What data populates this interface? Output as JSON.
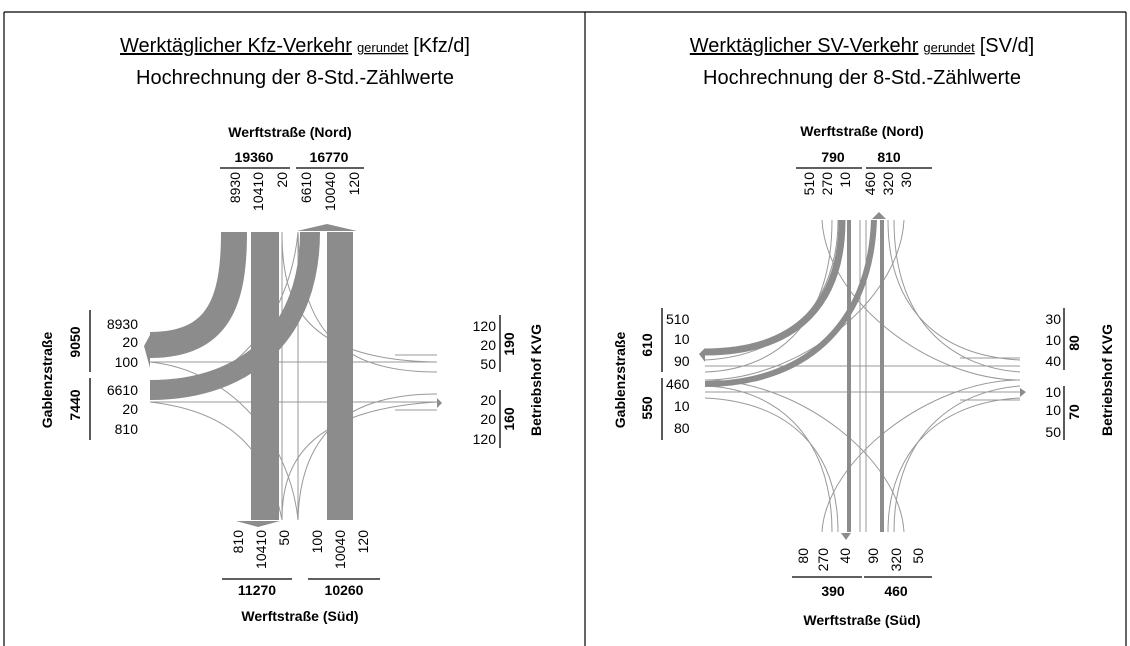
{
  "colors": {
    "flow": "#8c8c8c",
    "thin": "#999999",
    "border": "#000000"
  },
  "panels": [
    {
      "title_main": "Werktäglicher Kfz-Verkehr",
      "title_small": "gerundet",
      "title_unit": "[Kfz/d]",
      "subtitle": "Hochrechnung der 8-Std.-Zählwerte",
      "north": {
        "road": "Werftstraße (Nord)",
        "total_in": "19360",
        "total_out": "16770",
        "in_values": [
          "8930",
          "10410",
          "20"
        ],
        "out_values": [
          "6610",
          "10040",
          "120"
        ]
      },
      "south": {
        "road": "Werftstraße (Süd)",
        "total_out": "11270",
        "total_in": "10260",
        "out_values": [
          "810",
          "10410",
          "50"
        ],
        "in_values": [
          "100",
          "10040",
          "120"
        ]
      },
      "west": {
        "road": "Gablenzstraße",
        "total_out": "9050",
        "total_in": "7440",
        "out_values": [
          "8930",
          "20",
          "100"
        ],
        "in_values": [
          "6610",
          "20",
          "810"
        ]
      },
      "east": {
        "road": "Betriebshof KVG",
        "total_out": "190",
        "total_in": "160",
        "out_values": [
          "120",
          "20",
          "50"
        ],
        "in_values": [
          "20",
          "20",
          "120"
        ]
      }
    },
    {
      "title_main": "Werktäglicher SV-Verkehr",
      "title_small": "gerundet",
      "title_unit": "[SV/d]",
      "subtitle": "Hochrechnung der 8-Std.-Zählwerte",
      "north": {
        "road": "Werftstraße (Nord)",
        "total_in": "790",
        "total_out": "810",
        "in_values": [
          "510",
          "270",
          "10"
        ],
        "out_values": [
          "460",
          "320",
          "30"
        ]
      },
      "south": {
        "road": "Werftstraße (Süd)",
        "total_out": "390",
        "total_in": "460",
        "out_values": [
          "80",
          "270",
          "40"
        ],
        "in_values": [
          "90",
          "320",
          "50"
        ]
      },
      "west": {
        "road": "Gablenzstraße",
        "total_out": "610",
        "total_in": "550",
        "out_values": [
          "510",
          "10",
          "90"
        ],
        "in_values": [
          "460",
          "10",
          "80"
        ]
      },
      "east": {
        "road": "Betriebshof KVG",
        "total_out": "80",
        "total_in": "70",
        "out_values": [
          "30",
          "10",
          "40"
        ],
        "in_values": [
          "10",
          "10",
          "50"
        ]
      }
    }
  ]
}
